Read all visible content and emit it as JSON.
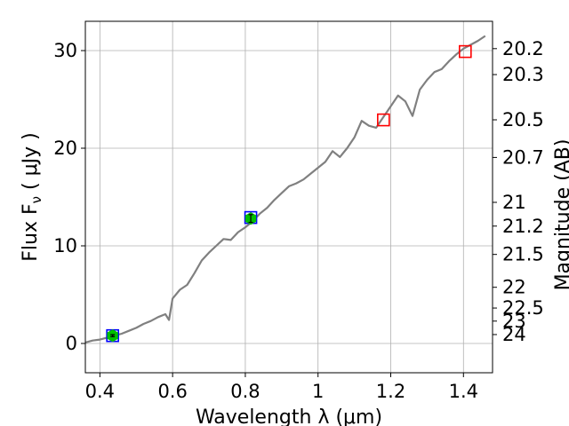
{
  "chart_data": {
    "type": "line",
    "xlabel": "Wavelength  λ (μm)",
    "ylabel": "Flux  F_ν  ( μJy )",
    "ylabel_parts": {
      "prefix": "Flux  F",
      "subscript": "ν",
      "suffix": "  ( μJy )"
    },
    "y2label": "Magnitude (AB)",
    "xlim": [
      0.36,
      1.48
    ],
    "ylim": [
      -3.0,
      33.0
    ],
    "grid": true,
    "x_ticks": [
      0.4,
      0.6,
      0.8,
      1.0,
      1.2,
      1.4
    ],
    "x_tick_labels": [
      "0.4",
      "0.6",
      "0.8",
      "1",
      "1.2",
      "1.4"
    ],
    "y_ticks": [
      0,
      10,
      20,
      30
    ],
    "y_tick_labels": [
      "0",
      "10",
      "20",
      "30"
    ],
    "y2_ticks": [
      20.2,
      20.3,
      20.5,
      20.7,
      21,
      21.2,
      21.5,
      22,
      22.5,
      23,
      24
    ],
    "y2_tick_labels": [
      "20.2",
      "20.3",
      "20.5",
      "20.7",
      "21",
      "21.2",
      "21.5",
      "22",
      "22.5",
      "23",
      "24"
    ],
    "series": [
      {
        "type": "line",
        "color": "#808080",
        "x": [
          0.36,
          0.38,
          0.4,
          0.42,
          0.44,
          0.46,
          0.48,
          0.5,
          0.52,
          0.54,
          0.56,
          0.58,
          0.59,
          0.6,
          0.62,
          0.64,
          0.66,
          0.68,
          0.7,
          0.72,
          0.74,
          0.76,
          0.78,
          0.8,
          0.82,
          0.84,
          0.86,
          0.88,
          0.9,
          0.92,
          0.94,
          0.96,
          0.98,
          1.0,
          1.02,
          1.04,
          1.06,
          1.08,
          1.1,
          1.12,
          1.14,
          1.16,
          1.18,
          1.2,
          1.22,
          1.24,
          1.26,
          1.28,
          1.3,
          1.32,
          1.34,
          1.36,
          1.38,
          1.4,
          1.42,
          1.44,
          1.46
        ],
        "y": [
          0.1,
          0.3,
          0.4,
          0.6,
          0.8,
          1.0,
          1.3,
          1.6,
          2.0,
          2.3,
          2.7,
          3.0,
          2.4,
          4.6,
          5.5,
          6.0,
          7.2,
          8.5,
          9.3,
          10.0,
          10.7,
          10.6,
          11.4,
          11.9,
          12.5,
          13.3,
          13.9,
          14.7,
          15.4,
          16.1,
          16.4,
          16.8,
          17.4,
          18.0,
          18.6,
          19.7,
          19.1,
          20.0,
          21.1,
          22.8,
          22.3,
          22.1,
          23.2,
          24.3,
          25.4,
          24.8,
          23.3,
          26.0,
          27.0,
          27.8,
          28.1,
          28.9,
          29.6,
          30.2,
          30.6,
          31.0,
          31.5
        ]
      },
      {
        "type": "scatter",
        "marker": "square-open",
        "color": "#0000ff",
        "x": [
          0.435,
          0.815
        ],
        "y": [
          0.8,
          12.9
        ]
      },
      {
        "type": "scatter",
        "marker": "square-open",
        "color": "#ff0000",
        "x": [
          1.18,
          1.405
        ],
        "y": [
          22.9,
          29.9
        ]
      },
      {
        "type": "scatter",
        "marker": "hexagon-errorbar",
        "color": "#00c000",
        "x": [
          0.435,
          0.815
        ],
        "y": [
          0.8,
          12.8
        ],
        "yerr": [
          0.1,
          0.4
        ]
      }
    ]
  }
}
